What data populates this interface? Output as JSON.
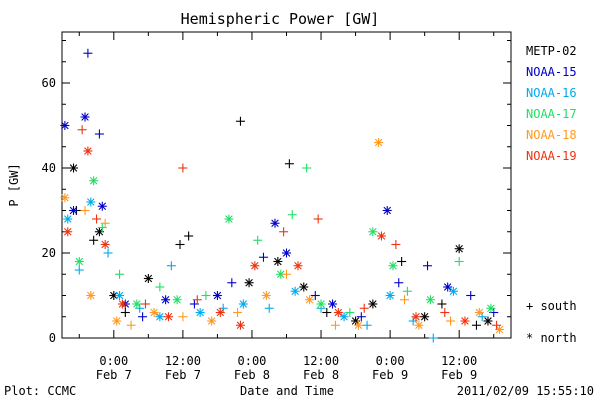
{
  "chart_data": {
    "type": "scatter",
    "title": "Hemispheric Power [GW]",
    "xlabel": "Date and Time",
    "ylabel": "P [GW]",
    "ylim": [
      0,
      72
    ],
    "xlim_hours": [
      -9,
      69
    ],
    "yticks": [
      0,
      20,
      40,
      60
    ],
    "xticks": [
      {
        "hour": 0,
        "time": "0:00",
        "date": "Feb 7"
      },
      {
        "hour": 12,
        "time": "12:00",
        "date": "Feb 7"
      },
      {
        "hour": 24,
        "time": "0:00",
        "date": "Feb 8"
      },
      {
        "hour": 36,
        "time": "12:00",
        "date": "Feb 8"
      },
      {
        "hour": 48,
        "time": "0:00",
        "date": "Feb 9"
      },
      {
        "hour": 60,
        "time": "12:00",
        "date": "Feb 9"
      }
    ],
    "grid": false,
    "legend_position": "right",
    "markers_legend": {
      "south": "+ south",
      "north": "* north"
    },
    "series": [
      {
        "name": "METP-02",
        "color": "#000000",
        "points": [
          {
            "x": -7.0,
            "y": 40,
            "m": "*"
          },
          {
            "x": -6.5,
            "y": 30,
            "m": "+"
          },
          {
            "x": -3.5,
            "y": 23,
            "m": "+"
          },
          {
            "x": -2.5,
            "y": 25,
            "m": "*"
          },
          {
            "x": 0.0,
            "y": 10,
            "m": "*"
          },
          {
            "x": 2.0,
            "y": 6,
            "m": "+"
          },
          {
            "x": 6.0,
            "y": 14,
            "m": "*"
          },
          {
            "x": 11.5,
            "y": 22,
            "m": "+"
          },
          {
            "x": 13.0,
            "y": 24,
            "m": "+"
          },
          {
            "x": 22.0,
            "y": 51,
            "m": "+"
          },
          {
            "x": 23.5,
            "y": 13,
            "m": "*"
          },
          {
            "x": 28.5,
            "y": 18,
            "m": "*"
          },
          {
            "x": 30.5,
            "y": 41,
            "m": "+"
          },
          {
            "x": 33.0,
            "y": 12,
            "m": "*"
          },
          {
            "x": 37.0,
            "y": 6,
            "m": "+"
          },
          {
            "x": 42.0,
            "y": 4,
            "m": "*"
          },
          {
            "x": 45.0,
            "y": 8,
            "m": "*"
          },
          {
            "x": 50.0,
            "y": 18,
            "m": "+"
          },
          {
            "x": 54.0,
            "y": 5,
            "m": "*"
          },
          {
            "x": 57.0,
            "y": 8,
            "m": "+"
          },
          {
            "x": 60.0,
            "y": 21,
            "m": "*"
          },
          {
            "x": 63.0,
            "y": 3,
            "m": "+"
          },
          {
            "x": 65.0,
            "y": 4,
            "m": "*"
          }
        ]
      },
      {
        "name": "NOAA-15",
        "color": "#0000cc",
        "points": [
          {
            "x": -8.5,
            "y": 50,
            "m": "*"
          },
          {
            "x": -7.0,
            "y": 30,
            "m": "*"
          },
          {
            "x": -5.0,
            "y": 52,
            "m": "*"
          },
          {
            "x": -4.5,
            "y": 67,
            "m": "+"
          },
          {
            "x": -2.5,
            "y": 48,
            "m": "+"
          },
          {
            "x": -2.0,
            "y": 31,
            "m": "*"
          },
          {
            "x": 2.0,
            "y": 8,
            "m": "*"
          },
          {
            "x": 5.0,
            "y": 5,
            "m": "+"
          },
          {
            "x": 9.0,
            "y": 9,
            "m": "*"
          },
          {
            "x": 14.0,
            "y": 8,
            "m": "+"
          },
          {
            "x": 18.0,
            "y": 10,
            "m": "*"
          },
          {
            "x": 20.5,
            "y": 13,
            "m": "+"
          },
          {
            "x": 26.0,
            "y": 19,
            "m": "+"
          },
          {
            "x": 28.0,
            "y": 27,
            "m": "*"
          },
          {
            "x": 30.0,
            "y": 20,
            "m": "*"
          },
          {
            "x": 35.0,
            "y": 10,
            "m": "+"
          },
          {
            "x": 38.0,
            "y": 8,
            "m": "*"
          },
          {
            "x": 43.0,
            "y": 5,
            "m": "+"
          },
          {
            "x": 47.5,
            "y": 30,
            "m": "*"
          },
          {
            "x": 49.5,
            "y": 13,
            "m": "+"
          },
          {
            "x": 54.5,
            "y": 17,
            "m": "+"
          },
          {
            "x": 58.0,
            "y": 12,
            "m": "*"
          },
          {
            "x": 62.0,
            "y": 10,
            "m": "+"
          },
          {
            "x": 66.0,
            "y": 6,
            "m": "+"
          }
        ]
      },
      {
        "name": "NOAA-16",
        "color": "#00aaee",
        "points": [
          {
            "x": -8.0,
            "y": 28,
            "m": "*"
          },
          {
            "x": -6.0,
            "y": 16,
            "m": "+"
          },
          {
            "x": -4.0,
            "y": 32,
            "m": "*"
          },
          {
            "x": -1.0,
            "y": 20,
            "m": "+"
          },
          {
            "x": 1.0,
            "y": 10,
            "m": "*"
          },
          {
            "x": 4.5,
            "y": 7,
            "m": "+"
          },
          {
            "x": 8.0,
            "y": 5,
            "m": "*"
          },
          {
            "x": 10.0,
            "y": 17,
            "m": "+"
          },
          {
            "x": 15.0,
            "y": 6,
            "m": "*"
          },
          {
            "x": 19.0,
            "y": 7,
            "m": "+"
          },
          {
            "x": 22.5,
            "y": 8,
            "m": "*"
          },
          {
            "x": 27.0,
            "y": 7,
            "m": "+"
          },
          {
            "x": 31.5,
            "y": 11,
            "m": "*"
          },
          {
            "x": 36.0,
            "y": 7,
            "m": "+"
          },
          {
            "x": 40.0,
            "y": 5,
            "m": "*"
          },
          {
            "x": 44.0,
            "y": 3,
            "m": "+"
          },
          {
            "x": 48.0,
            "y": 10,
            "m": "*"
          },
          {
            "x": 52.0,
            "y": 4,
            "m": "+"
          },
          {
            "x": 55.5,
            "y": 0,
            "m": "+"
          },
          {
            "x": 59.0,
            "y": 11,
            "m": "*"
          },
          {
            "x": 64.0,
            "y": 5,
            "m": "+"
          }
        ]
      },
      {
        "name": "NOAA-17",
        "color": "#22dd66",
        "points": [
          {
            "x": -6.0,
            "y": 18,
            "m": "*"
          },
          {
            "x": -3.5,
            "y": 37,
            "m": "*"
          },
          {
            "x": -2.0,
            "y": 26,
            "m": "+"
          },
          {
            "x": 1.0,
            "y": 15,
            "m": "+"
          },
          {
            "x": 4.0,
            "y": 8,
            "m": "*"
          },
          {
            "x": 8.0,
            "y": 12,
            "m": "+"
          },
          {
            "x": 11.0,
            "y": 9,
            "m": "*"
          },
          {
            "x": 16.0,
            "y": 10,
            "m": "+"
          },
          {
            "x": 20.0,
            "y": 28,
            "m": "*"
          },
          {
            "x": 25.0,
            "y": 23,
            "m": "+"
          },
          {
            "x": 29.0,
            "y": 15,
            "m": "*"
          },
          {
            "x": 31.0,
            "y": 29,
            "m": "+"
          },
          {
            "x": 33.5,
            "y": 40,
            "m": "+"
          },
          {
            "x": 36.0,
            "y": 8,
            "m": "*"
          },
          {
            "x": 41.0,
            "y": 6,
            "m": "+"
          },
          {
            "x": 45.0,
            "y": 25,
            "m": "*"
          },
          {
            "x": 48.5,
            "y": 17,
            "m": "*"
          },
          {
            "x": 51.0,
            "y": 11,
            "m": "+"
          },
          {
            "x": 55.0,
            "y": 9,
            "m": "*"
          },
          {
            "x": 60.0,
            "y": 18,
            "m": "+"
          },
          {
            "x": 65.5,
            "y": 7,
            "m": "*"
          }
        ]
      },
      {
        "name": "NOAA-18",
        "color": "#ff9922",
        "points": [
          {
            "x": -8.5,
            "y": 33,
            "m": "*"
          },
          {
            "x": -5.0,
            "y": 30,
            "m": "+"
          },
          {
            "x": -4.0,
            "y": 10,
            "m": "*"
          },
          {
            "x": -1.5,
            "y": 27,
            "m": "+"
          },
          {
            "x": 0.5,
            "y": 4,
            "m": "*"
          },
          {
            "x": 3.0,
            "y": 3,
            "m": "+"
          },
          {
            "x": 7.0,
            "y": 6,
            "m": "*"
          },
          {
            "x": 12.0,
            "y": 5,
            "m": "+"
          },
          {
            "x": 17.0,
            "y": 4,
            "m": "*"
          },
          {
            "x": 21.5,
            "y": 6,
            "m": "+"
          },
          {
            "x": 26.5,
            "y": 10,
            "m": "*"
          },
          {
            "x": 30.0,
            "y": 15,
            "m": "+"
          },
          {
            "x": 34.0,
            "y": 9,
            "m": "*"
          },
          {
            "x": 38.5,
            "y": 3,
            "m": "+"
          },
          {
            "x": 42.5,
            "y": 3,
            "m": "*"
          },
          {
            "x": 46.0,
            "y": 46,
            "m": "*"
          },
          {
            "x": 50.5,
            "y": 9,
            "m": "+"
          },
          {
            "x": 53.0,
            "y": 3,
            "m": "*"
          },
          {
            "x": 58.5,
            "y": 4,
            "m": "+"
          },
          {
            "x": 63.5,
            "y": 6,
            "m": "*"
          },
          {
            "x": 67.0,
            "y": 2,
            "m": "*"
          }
        ]
      },
      {
        "name": "NOAA-19",
        "color": "#ee3311",
        "points": [
          {
            "x": -8.0,
            "y": 25,
            "m": "*"
          },
          {
            "x": -5.5,
            "y": 49,
            "m": "+"
          },
          {
            "x": -4.5,
            "y": 44,
            "m": "*"
          },
          {
            "x": -3.0,
            "y": 28,
            "m": "+"
          },
          {
            "x": -1.5,
            "y": 22,
            "m": "*"
          },
          {
            "x": 1.5,
            "y": 8,
            "m": "*"
          },
          {
            "x": 5.5,
            "y": 8,
            "m": "+"
          },
          {
            "x": 9.5,
            "y": 5,
            "m": "*"
          },
          {
            "x": 12.0,
            "y": 40,
            "m": "+"
          },
          {
            "x": 14.5,
            "y": 9,
            "m": "+"
          },
          {
            "x": 18.5,
            "y": 6,
            "m": "*"
          },
          {
            "x": 22.0,
            "y": 3,
            "m": "*"
          },
          {
            "x": 24.5,
            "y": 17,
            "m": "*"
          },
          {
            "x": 29.5,
            "y": 25,
            "m": "+"
          },
          {
            "x": 32.0,
            "y": 17,
            "m": "*"
          },
          {
            "x": 35.5,
            "y": 28,
            "m": "+"
          },
          {
            "x": 39.0,
            "y": 6,
            "m": "*"
          },
          {
            "x": 43.5,
            "y": 7,
            "m": "+"
          },
          {
            "x": 46.5,
            "y": 24,
            "m": "*"
          },
          {
            "x": 49.0,
            "y": 22,
            "m": "+"
          },
          {
            "x": 52.5,
            "y": 5,
            "m": "*"
          },
          {
            "x": 57.5,
            "y": 6,
            "m": "+"
          },
          {
            "x": 61.0,
            "y": 4,
            "m": "*"
          },
          {
            "x": 66.5,
            "y": 3,
            "m": "+"
          }
        ]
      }
    ]
  },
  "footer": {
    "plot_credit": "Plot: CCMC",
    "timestamp": "2011/02/09 15:55:10"
  }
}
